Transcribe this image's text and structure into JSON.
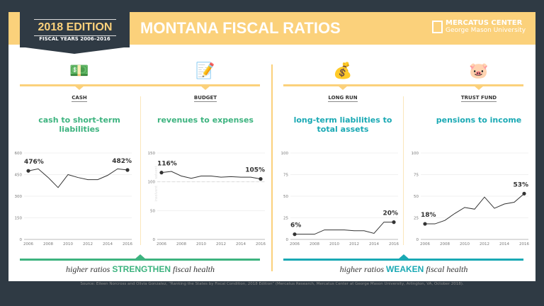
{
  "header": {
    "edition": "2018 EDITION",
    "fiscal_years": "FISCAL YEARS 2006–2016",
    "title": "MONTANA FISCAL RATIOS",
    "logo_line1": "MERCATUS CENTER",
    "logo_line2": "George Mason University"
  },
  "colors": {
    "gold": "#fbd17b",
    "dark": "#2f3a44",
    "green": "#3db37f",
    "teal": "#1aa9b4"
  },
  "footer": {
    "left_pre": "higher ratios",
    "left_key": "STRENGTHEN",
    "left_post": "fiscal health",
    "right_pre": "higher ratios",
    "right_key": "WEAKEN",
    "right_post": "fiscal health",
    "source": "Source: Eileen Norcross and Olivia Gonzalez, “Ranking the States by Fiscal Condition, 2018 Edition” (Mercatus Research, Mercatus Center at George Mason University, Arlington, VA, October 2018)."
  },
  "panels": [
    {
      "label": "CASH",
      "subtitle": "cash to short-term liabilities",
      "icon": "cash-coins-icon"
    },
    {
      "label": "BUDGET",
      "subtitle": "revenues to expenses",
      "icon": "budget-document-icon"
    },
    {
      "label": "LONG RUN",
      "subtitle": "long-term liabilities to total assets",
      "icon": "stacked-money-icon"
    },
    {
      "label": "TRUST FUND",
      "subtitle": "pensions to income",
      "icon": "piggy-bank-icon"
    }
  ],
  "chart_data": [
    {
      "type": "line",
      "x": [
        2006,
        2007,
        2008,
        2009,
        2010,
        2011,
        2012,
        2013,
        2014,
        2015,
        2016
      ],
      "values": [
        476,
        490,
        430,
        360,
        450,
        430,
        415,
        415,
        445,
        490,
        482
      ],
      "ylim": [
        0,
        600
      ],
      "yticks": [
        0,
        150,
        300,
        450,
        600
      ],
      "xticks": [
        2006,
        2008,
        2010,
        2012,
        2014,
        2016
      ],
      "labels": {
        "start": "476%",
        "end": "482%"
      }
    },
    {
      "type": "line",
      "x": [
        2006,
        2007,
        2008,
        2009,
        2010,
        2011,
        2012,
        2013,
        2014,
        2015,
        2016
      ],
      "values": [
        116,
        118,
        110,
        106,
        110,
        110,
        108,
        109,
        108,
        108,
        105
      ],
      "ylim": [
        0,
        150
      ],
      "yticks": [
        0,
        50,
        100,
        150
      ],
      "xticks": [
        2006,
        2008,
        2010,
        2012,
        2014,
        2016
      ],
      "labels": {
        "start": "116%",
        "end": "105%"
      },
      "reference_line": 100,
      "annotations": [
        "solvent",
        "insolvent"
      ]
    },
    {
      "type": "line",
      "x": [
        2006,
        2007,
        2008,
        2009,
        2010,
        2011,
        2012,
        2013,
        2014,
        2015,
        2016
      ],
      "values": [
        6,
        6,
        6,
        11,
        11,
        11,
        10,
        10,
        7,
        20,
        20
      ],
      "ylim": [
        0,
        100
      ],
      "yticks": [
        0,
        25,
        50,
        75,
        100
      ],
      "xticks": [
        2006,
        2008,
        2010,
        2012,
        2014,
        2016
      ],
      "labels": {
        "start": "6%",
        "end": "20%"
      }
    },
    {
      "type": "line",
      "x": [
        2006,
        2007,
        2008,
        2009,
        2010,
        2011,
        2012,
        2013,
        2014,
        2015,
        2016
      ],
      "values": [
        18,
        18,
        22,
        30,
        37,
        35,
        49,
        36,
        41,
        43,
        53
      ],
      "ylim": [
        0,
        100
      ],
      "yticks": [
        0,
        25,
        50,
        75,
        100
      ],
      "xticks": [
        2006,
        2008,
        2010,
        2012,
        2014,
        2016
      ],
      "labels": {
        "start": "18%",
        "end": "53%"
      }
    }
  ]
}
